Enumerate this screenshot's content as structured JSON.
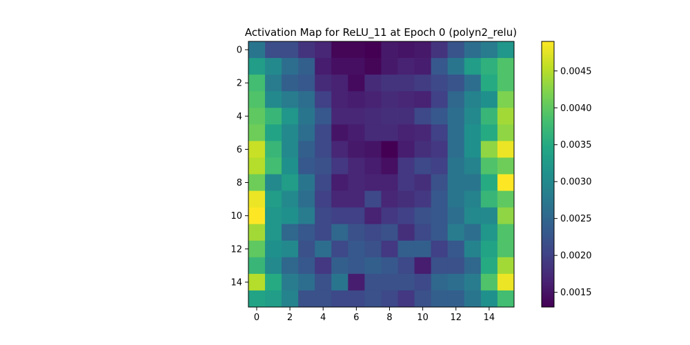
{
  "chart_data": {
    "type": "heatmap",
    "title": "Activation Map for ReLU_11 at Epoch 0 (polyn2_relu)",
    "colormap": "viridis",
    "vmin": 0.0013,
    "vmax": 0.0049,
    "rows": 16,
    "cols": 16,
    "x_ticks": [
      0,
      2,
      4,
      6,
      8,
      10,
      12,
      14
    ],
    "y_ticks": [
      0,
      2,
      4,
      6,
      8,
      10,
      12,
      14
    ],
    "x_tick_labels": [
      "0",
      "2",
      "4",
      "6",
      "8",
      "10",
      "12",
      "14"
    ],
    "y_tick_labels": [
      "0",
      "2",
      "4",
      "6",
      "8",
      "10",
      "12",
      "14"
    ],
    "colorbar_ticks": [
      0.0015,
      0.002,
      0.0025,
      0.003,
      0.0035,
      0.004,
      0.0045
    ],
    "colorbar_tick_labels": [
      "0.0015",
      "0.0020",
      "0.0025",
      "0.0030",
      "0.0035",
      "0.0040",
      "0.0045"
    ],
    "values": [
      [
        0.0027,
        0.00215,
        0.00215,
        0.00185,
        0.0017,
        0.00135,
        0.00135,
        0.0013,
        0.00155,
        0.0015,
        0.00155,
        0.00185,
        0.00225,
        0.0026,
        0.0028,
        0.0032
      ],
      [
        0.0033,
        0.003,
        0.0026,
        0.0024,
        0.0016,
        0.00145,
        0.00145,
        0.00135,
        0.00155,
        0.00165,
        0.0016,
        0.0023,
        0.0027,
        0.0033,
        0.0036,
        0.0039
      ],
      [
        0.0038,
        0.0028,
        0.0024,
        0.0023,
        0.00175,
        0.00165,
        0.0014,
        0.00175,
        0.00185,
        0.00185,
        0.00195,
        0.0021,
        0.00225,
        0.0026,
        0.0035,
        0.0039
      ],
      [
        0.0039,
        0.003,
        0.0028,
        0.0026,
        0.002,
        0.00165,
        0.0016,
        0.00165,
        0.00175,
        0.0017,
        0.00165,
        0.002,
        0.0025,
        0.0029,
        0.0031,
        0.0042
      ],
      [
        0.004,
        0.0037,
        0.0032,
        0.0027,
        0.0023,
        0.0017,
        0.0017,
        0.00175,
        0.0018,
        0.0018,
        0.0021,
        0.0023,
        0.0026,
        0.003,
        0.0037,
        0.0044
      ],
      [
        0.0041,
        0.0034,
        0.003,
        0.0026,
        0.0021,
        0.0015,
        0.0016,
        0.00175,
        0.00175,
        0.00165,
        0.0017,
        0.002,
        0.0026,
        0.0031,
        0.0035,
        0.0043
      ],
      [
        0.0046,
        0.0037,
        0.003,
        0.0024,
        0.0021,
        0.0017,
        0.00155,
        0.0015,
        0.0013,
        0.0016,
        0.0018,
        0.0019,
        0.0026,
        0.0031,
        0.0043,
        0.0048
      ],
      [
        0.0045,
        0.0038,
        0.0031,
        0.0023,
        0.0022,
        0.0019,
        0.0017,
        0.0016,
        0.00145,
        0.0019,
        0.0021,
        0.002,
        0.0027,
        0.0029,
        0.0039,
        0.0041
      ],
      [
        0.0041,
        0.003,
        0.0033,
        0.0027,
        0.0021,
        0.0016,
        0.0017,
        0.00165,
        0.00165,
        0.0019,
        0.0018,
        0.0022,
        0.0027,
        0.0027,
        0.0035,
        0.0049
      ],
      [
        0.0048,
        0.0033,
        0.003,
        0.0026,
        0.002,
        0.0017,
        0.0017,
        0.0021,
        0.0017,
        0.0018,
        0.0019,
        0.0023,
        0.0027,
        0.0029,
        0.0037,
        0.004
      ],
      [
        0.0049,
        0.0032,
        0.0031,
        0.0028,
        0.0021,
        0.002,
        0.002,
        0.00165,
        0.0019,
        0.002,
        0.0022,
        0.0023,
        0.0026,
        0.003,
        0.003,
        0.0043
      ],
      [
        0.0044,
        0.0032,
        0.0025,
        0.0023,
        0.0021,
        0.0025,
        0.0022,
        0.0021,
        0.0022,
        0.0018,
        0.0021,
        0.0023,
        0.0028,
        0.0026,
        0.0032,
        0.0039
      ],
      [
        0.004,
        0.0031,
        0.003,
        0.0022,
        0.0026,
        0.0021,
        0.0023,
        0.0022,
        0.0019,
        0.0024,
        0.0024,
        0.002,
        0.0023,
        0.0029,
        0.0034,
        0.0039
      ],
      [
        0.0037,
        0.003,
        0.0025,
        0.0023,
        0.0019,
        0.0024,
        0.0023,
        0.0024,
        0.0023,
        0.0021,
        0.0016,
        0.0022,
        0.0022,
        0.0025,
        0.0035,
        0.0044
      ],
      [
        0.0045,
        0.0035,
        0.0028,
        0.0026,
        0.0022,
        0.0027,
        0.0016,
        0.0022,
        0.0022,
        0.0022,
        0.0021,
        0.0025,
        0.0026,
        0.0028,
        0.0039,
        0.0048
      ],
      [
        0.0034,
        0.0033,
        0.0029,
        0.0022,
        0.0022,
        0.0021,
        0.0021,
        0.0022,
        0.0021,
        0.0019,
        0.0022,
        0.0024,
        0.0024,
        0.0027,
        0.0031,
        0.0038
      ]
    ]
  }
}
